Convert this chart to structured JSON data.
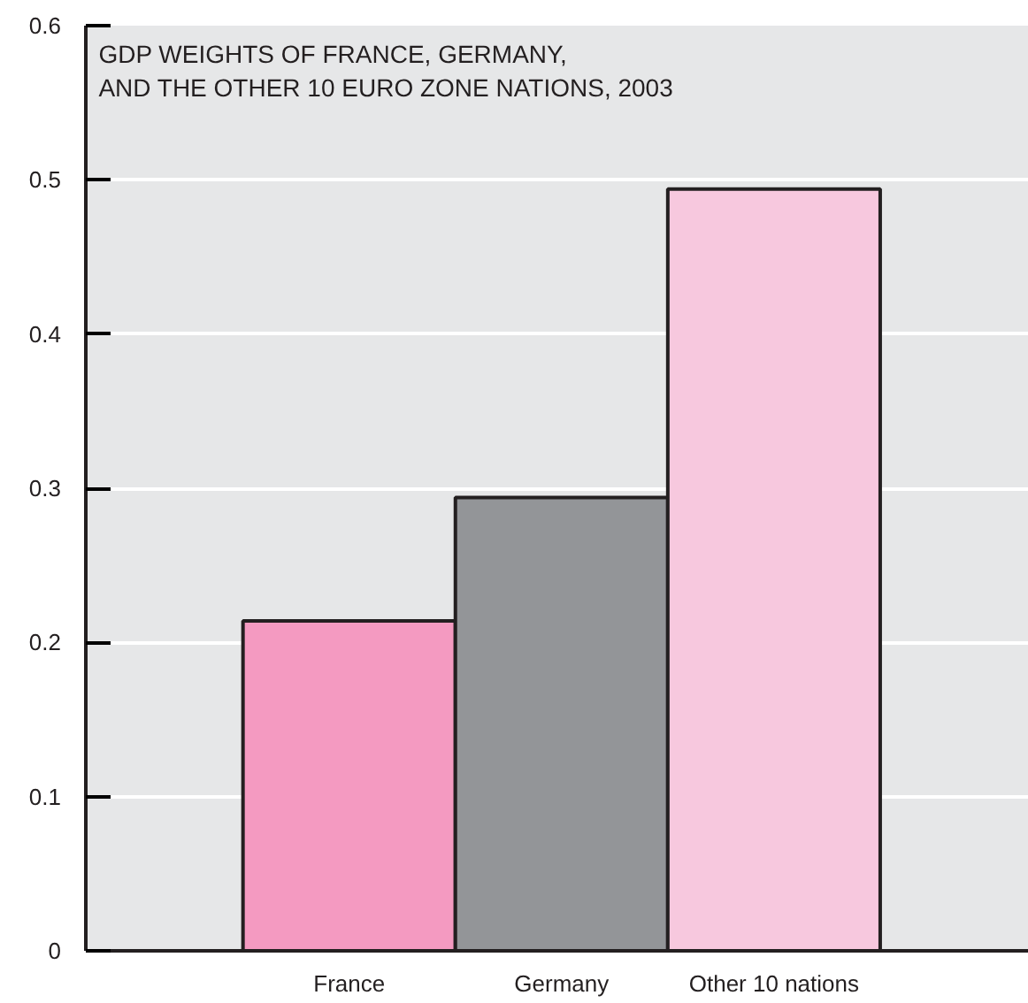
{
  "chart_data": {
    "type": "bar",
    "title": "GDP WEIGHTS OF FRANCE, GERMANY,\nAND THE OTHER 10 EURO ZONE NATIONS, 2003",
    "categories": [
      "France",
      "Germany",
      "Other 10 nations"
    ],
    "values": [
      0.214,
      0.294,
      0.494
    ],
    "colors": [
      "#f49ac1",
      "#939598",
      "#f7c8de"
    ],
    "ylim": [
      0,
      0.6
    ],
    "yticks": [
      0,
      0.1,
      0.2,
      0.3,
      0.4,
      0.5,
      0.6
    ],
    "grid": "y"
  }
}
